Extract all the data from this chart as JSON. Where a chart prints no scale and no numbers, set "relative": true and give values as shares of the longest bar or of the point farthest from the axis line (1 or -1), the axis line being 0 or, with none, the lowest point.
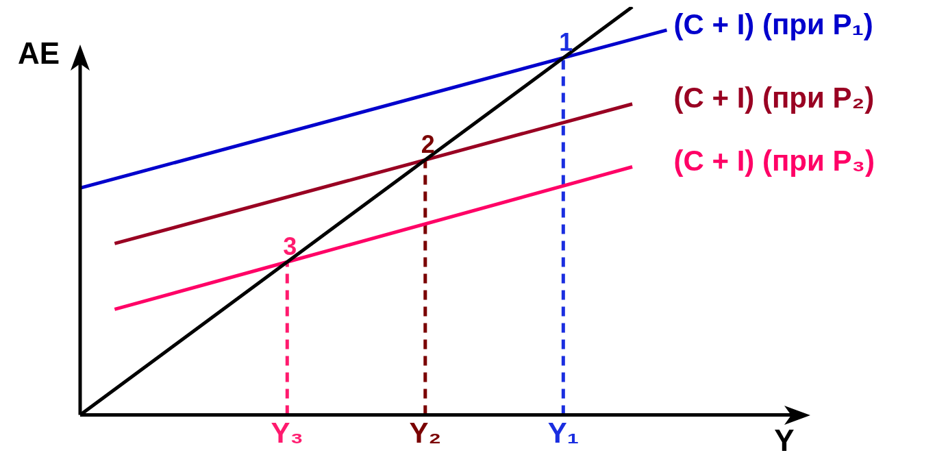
{
  "chart_data": {
    "type": "line",
    "relative": true,
    "xlabel": "Y",
    "ylabel": "AE",
    "categories": [
      null,
      null,
      null,
      null,
      null,
      null,
      "Y₃",
      null,
      null,
      null,
      "Y₂",
      null,
      null,
      null,
      "Y₁",
      null,
      null,
      null,
      null,
      null,
      null,
      null
    ],
    "legend": false,
    "grid": false,
    "marker": "none",
    "line_style": "solid",
    "series": [
      {
        "color": "#000000",
        "values": [
          0,
          null,
          null,
          null,
          null,
          null,
          0.375,
          null,
          null,
          null,
          0.625,
          null,
          null,
          null,
          0.875,
          null,
          1,
          null,
          null,
          null,
          null,
          null
        ]
      },
      {
        "name": "(C + I) (при P₁)",
        "color": "#0000cc",
        "values": [
          0.556,
          null,
          null,
          null,
          null,
          null,
          null,
          null,
          null,
          null,
          null,
          null,
          null,
          null,
          0.875,
          null,
          null,
          0.943,
          null,
          null,
          null,
          null
        ]
      },
      {
        "name": "(C + I) (при P₂)",
        "color": "#990022",
        "values": [
          null,
          0.42,
          null,
          null,
          null,
          null,
          null,
          null,
          null,
          null,
          0.625,
          null,
          null,
          null,
          null,
          null,
          0.762,
          null,
          null,
          null,
          null,
          null
        ]
      },
      {
        "name": "(C + I) (при P₃)",
        "color": "#ff0066",
        "values": [
          null,
          0.259,
          null,
          null,
          null,
          null,
          0.375,
          null,
          null,
          null,
          null,
          null,
          null,
          null,
          null,
          null,
          0.608,
          null,
          null,
          null,
          null,
          null
        ]
      }
    ],
    "ref_lines": [
      {
        "axis": "x",
        "value": "Y₃",
        "color": "#ff1a6e",
        "line_style": "dashed"
      },
      {
        "axis": "x",
        "value": "Y₂",
        "color": "#7a0000",
        "line_style": "dashed"
      },
      {
        "axis": "x",
        "value": "Y₁",
        "color": "#1a2ee0",
        "line_style": "dashed"
      }
    ],
    "annotations": [
      {
        "text": "1",
        "x": "Y₁",
        "y": 0.875
      },
      {
        "text": "2",
        "x": "Y₂",
        "y": 0.625
      },
      {
        "text": "3",
        "x": "Y₃",
        "y": 0.375
      }
    ]
  }
}
